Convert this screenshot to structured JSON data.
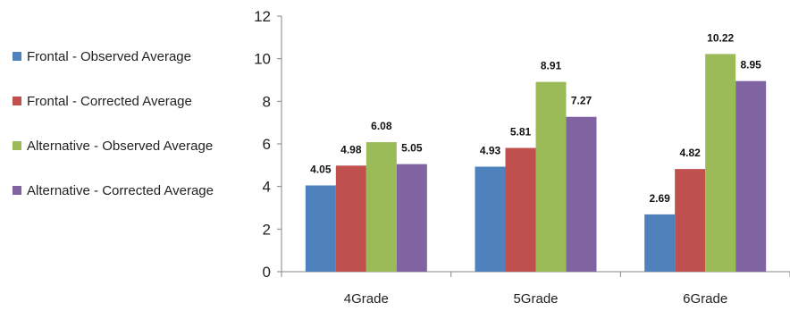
{
  "chart_data": {
    "type": "bar",
    "title": "",
    "xlabel": "",
    "ylabel": "",
    "categories": [
      "4Grade",
      "5Grade",
      "6Grade"
    ],
    "ylim": [
      0,
      12
    ],
    "yticks": [
      "0",
      "2",
      "4",
      "6",
      "8",
      "10",
      "12"
    ],
    "grid": false,
    "legend_position": "left",
    "series": [
      {
        "name": "Frontal - Observed Average",
        "color": "#4F81BD",
        "values": [
          4.05,
          4.93,
          2.69
        ],
        "labels": [
          "4.05",
          "4.93",
          "2.69"
        ]
      },
      {
        "name": "Frontal - Corrected Average",
        "color": "#C0504D",
        "values": [
          4.98,
          5.81,
          4.82
        ],
        "labels": [
          "4.98",
          "5.81",
          "4.82"
        ]
      },
      {
        "name": "Alternative - Observed Average",
        "color": "#9BBB59",
        "values": [
          6.08,
          8.91,
          10.22
        ],
        "labels": [
          "6.08",
          "8.91",
          "10.22"
        ]
      },
      {
        "name": "Alternative - Corrected Average",
        "color": "#8064A2",
        "values": [
          5.05,
          7.27,
          8.95
        ],
        "labels": [
          "5.05",
          "7.27",
          "8.95"
        ]
      }
    ]
  }
}
